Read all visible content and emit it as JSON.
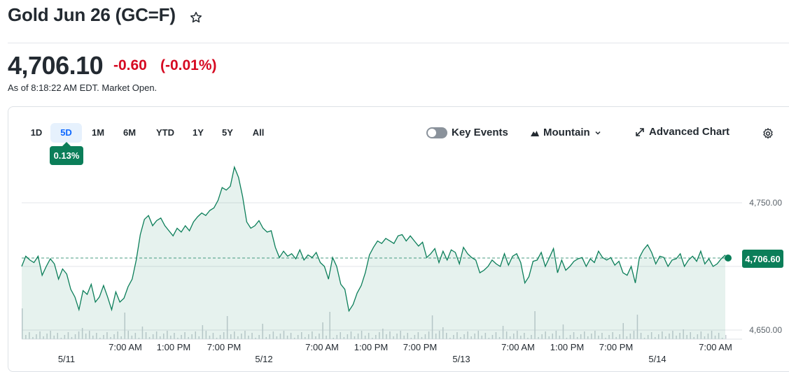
{
  "header": {
    "title": "Gold Jun 26 (GC=F)",
    "star_icon": "star-outline-icon"
  },
  "quote": {
    "price": "4,706.10",
    "change": "-0.60",
    "change_pct": "(-0.01%)",
    "change_color": "#d60a22",
    "as_of": "As of 8:18:22 AM EDT. Market Open."
  },
  "ranges": [
    "1D",
    "5D",
    "1M",
    "6M",
    "YTD",
    "1Y",
    "5Y",
    "All"
  ],
  "selected_range": "5D",
  "range_change_badge": "0.13%",
  "controls": {
    "key_events": "Key Events",
    "chart_type": "Mountain",
    "advanced": "Advanced Chart",
    "settings_icon": "gear-icon"
  },
  "colors": {
    "line": "#0b7e59",
    "accent": "#0f69ff"
  },
  "chart_data": {
    "type": "area",
    "y_ticks": [
      "4,750.00",
      "4,650.00"
    ],
    "ylim": [
      4640,
      4785
    ],
    "last_price_label": "4,706.60",
    "previous_close_marker": "dashed line",
    "x_time_labels": [
      "7:00 AM",
      "1:00 PM",
      "7:00 PM",
      "7:00 AM",
      "1:00 PM",
      "7:00 PM",
      "7:00 AM",
      "1:00 PM",
      "7:00 PM",
      "7:00 AM"
    ],
    "x_date_labels": [
      "5/11",
      "5/12",
      "5/13",
      "5/14"
    ],
    "series": [
      {
        "values": [
          4700,
          4708,
          4705,
          4703,
          4708,
          4693,
          4700,
          4706,
          4702,
          4690,
          4698,
          4694,
          4682,
          4676,
          4666,
          4681,
          4678,
          4686,
          4672,
          4676,
          4685,
          4676,
          4666,
          4680,
          4672,
          4675,
          4684,
          4690,
          4705,
          4725,
          4737,
          4740,
          4732,
          4736,
          4738,
          4732,
          4728,
          4724,
          4730,
          4727,
          4732,
          4728,
          4735,
          4739,
          4742,
          4740,
          4744,
          4746,
          4752,
          4762,
          4760,
          4763,
          4778,
          4770,
          4755,
          4735,
          4730,
          4732,
          4736,
          4730,
          4727,
          4728,
          4715,
          4707,
          4712,
          4708,
          4710,
          4706,
          4713,
          4705,
          4709,
          4707,
          4711,
          4703,
          4700,
          4690,
          4707,
          4700,
          4686,
          4682,
          4665,
          4670,
          4679,
          4685,
          4695,
          4709,
          4715,
          4720,
          4718,
          4722,
          4720,
          4718,
          4724,
          4725,
          4720,
          4724,
          4720,
          4716,
          4719,
          4707,
          4710,
          4714,
          4703,
          4712,
          4705,
          4713,
          4711,
          4702,
          4715,
          4710,
          4707,
          4705,
          4695,
          4697,
          4700,
          4705,
          4702,
          4700,
          4710,
          4701,
          4708,
          4710,
          4703,
          4687,
          4692,
          4704,
          4705,
          4711,
          4700,
          4707,
          4714,
          4695,
          4705,
          4697,
          4700,
          4704,
          4706,
          4707,
          4700,
          4706,
          4703,
          4712,
          4707,
          4705,
          4707,
          4701,
          4704,
          4695,
          4693,
          4700,
          4687,
          4707,
          4713,
          4717,
          4711,
          4702,
          4708,
          4707,
          4700,
          4705,
          4706,
          4710,
          4700,
          4705,
          4708,
          4704,
          4712,
          4702,
          4706,
          4700,
          4702,
          4706,
          4709
        ]
      }
    ]
  }
}
